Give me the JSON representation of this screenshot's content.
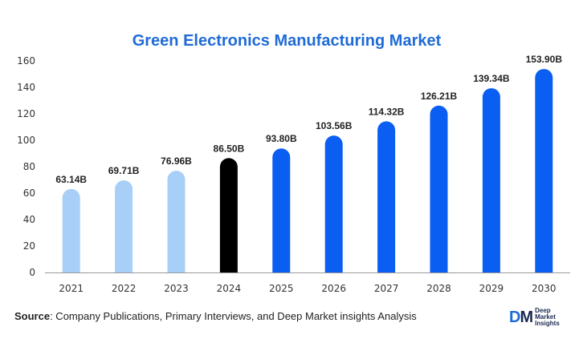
{
  "colors": {
    "title": "#1f6bd6",
    "historical": "#a7cff7",
    "base_year": "#000000",
    "forecast": "#0a5ef2",
    "axis": "#999999"
  },
  "chart_data": {
    "type": "bar",
    "title": "Green Electronics Manufacturing Market",
    "xlabel": "",
    "ylabel": "",
    "ylim": [
      0,
      160
    ],
    "yticks": [
      0,
      20,
      40,
      60,
      80,
      100,
      120,
      140,
      160
    ],
    "grid": false,
    "categories": [
      "2021",
      "2022",
      "2023",
      "2024",
      "2025",
      "2026",
      "2027",
      "2028",
      "2029",
      "2030"
    ],
    "values": [
      63.14,
      69.71,
      76.96,
      86.5,
      93.8,
      103.56,
      114.32,
      126.21,
      139.34,
      153.9
    ],
    "data_labels": [
      "63.14B",
      "69.71B",
      "76.96B",
      "86.50B",
      "93.80B",
      "103.56B",
      "114.32B",
      "126.21B",
      "139.34B",
      "153.90B"
    ],
    "bar_colors": [
      "historical",
      "historical",
      "historical",
      "base_year",
      "forecast",
      "forecast",
      "forecast",
      "forecast",
      "forecast",
      "forecast"
    ]
  },
  "footer": {
    "source_label": "Source",
    "source_text": ": Company Publications, Primary Interviews, and Deep Market insights Analysis"
  },
  "logo": {
    "mark_d": "D",
    "mark_m": "M",
    "line1": "Deep",
    "line2": "Market",
    "line3": "Insights"
  }
}
